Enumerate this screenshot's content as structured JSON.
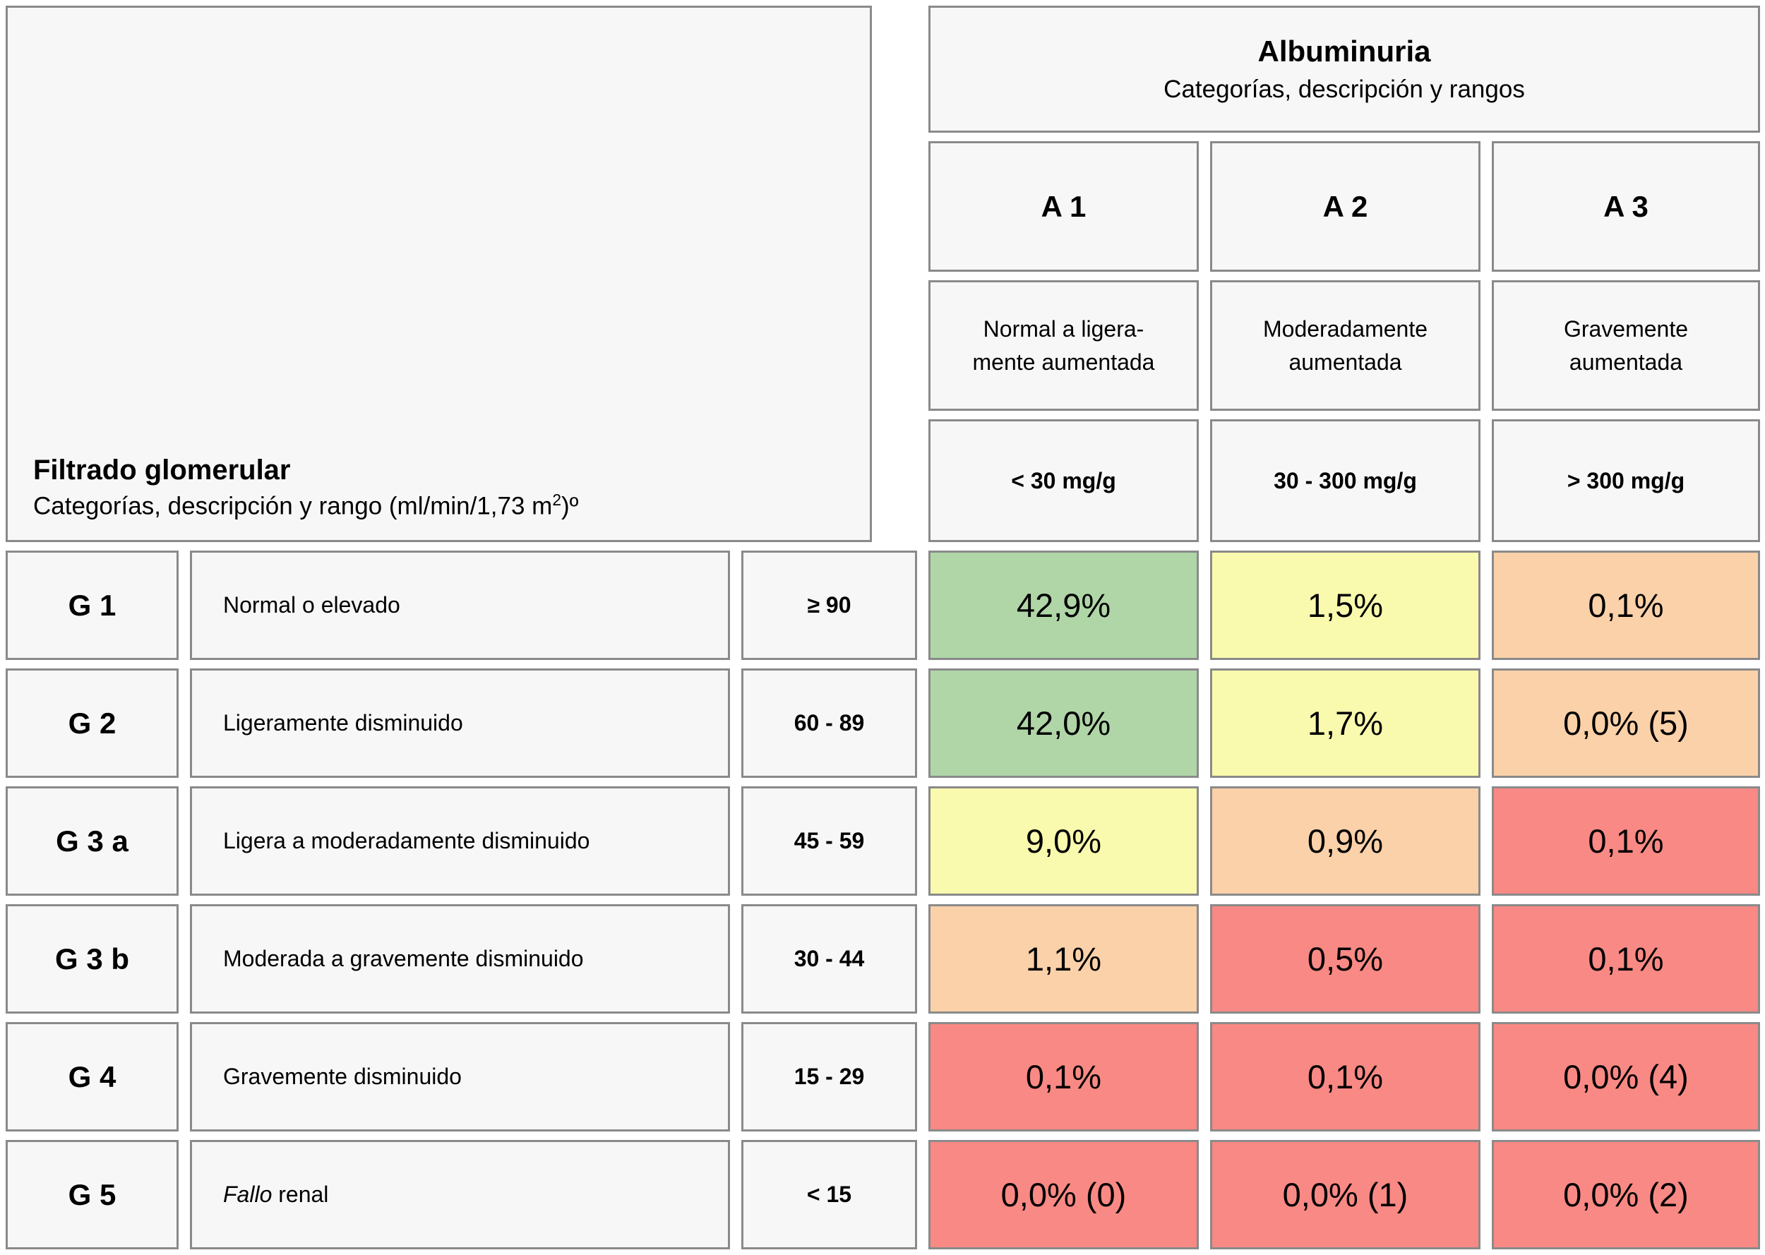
{
  "gfr_header": {
    "title": "Filtrado glomerular",
    "subtitle_prefix": "Categorías, descripción y rango (ml/min/1,73 m",
    "subtitle_sup": "2",
    "subtitle_suffix": ")º"
  },
  "albuminuria_header": {
    "title": "Albuminuria",
    "subtitle": "Categorías, descripción y rangos"
  },
  "albuminuria_categories": [
    {
      "code": "A 1",
      "desc_line1": "Normal a ligera-",
      "desc_line2": "mente aumentada",
      "range": "< 30 mg/g"
    },
    {
      "code": "A 2",
      "desc_line1": "Moderadamente",
      "desc_line2": "aumentada",
      "range": "30 - 300 mg/g"
    },
    {
      "code": "A 3",
      "desc_line1": "Gravemente",
      "desc_line2": "aumentada",
      "range": "> 300 mg/g"
    }
  ],
  "rows": [
    {
      "code": "G 1",
      "desc_italic": "",
      "desc": "Normal o elevado",
      "range": "≥ 90",
      "values": [
        "42,9%",
        "1,5%",
        "0,1%"
      ],
      "colors": [
        "green",
        "yellow",
        "orange"
      ]
    },
    {
      "code": "G 2",
      "desc_italic": "",
      "desc": "Ligeramente disminuido",
      "range": "60 - 89",
      "values": [
        "42,0%",
        "1,7%",
        "0,0% (5)"
      ],
      "colors": [
        "green",
        "yellow",
        "orange"
      ]
    },
    {
      "code": "G 3 a",
      "desc_italic": "",
      "desc": "Ligera a moderadamente disminuido",
      "range": "45 - 59",
      "values": [
        "9,0%",
        "0,9%",
        "0,1%"
      ],
      "colors": [
        "yellow",
        "orange",
        "red"
      ]
    },
    {
      "code": "G 3 b",
      "desc_italic": "",
      "desc": "Moderada a gravemente disminuido",
      "range": "30 - 44",
      "values": [
        "1,1%",
        "0,5%",
        "0,1%"
      ],
      "colors": [
        "orange",
        "red",
        "red"
      ]
    },
    {
      "code": "G 4",
      "desc_italic": "",
      "desc": "Gravemente disminuido",
      "range": "15 - 29",
      "values": [
        "0,1%",
        "0,1%",
        "0,0% (4)"
      ],
      "colors": [
        "red",
        "red",
        "red"
      ]
    },
    {
      "code": "G 5",
      "desc_italic": "Fallo",
      "desc": " renal",
      "range": "< 15",
      "values": [
        "0,0% (0)",
        "0,0% (1)",
        "0,0% (2)"
      ],
      "colors": [
        "red",
        "red",
        "red"
      ]
    }
  ],
  "colors": {
    "green": "#b0d6a8",
    "yellow": "#fafaae",
    "orange": "#fbd1a9",
    "red": "#f98984",
    "cell_background": "#f7f7f7",
    "border": "#8a8a8a"
  },
  "chart_data": {
    "type": "heatmap",
    "title": "Albuminuria",
    "subtitle": "Categorías, descripción y rangos",
    "row_axis_title": "Filtrado glomerular",
    "row_axis_subtitle": "Categorías, descripción y rango (ml/min/1,73 m2)º",
    "columns": [
      {
        "code": "A 1",
        "description": "Normal a ligeramente aumentada",
        "range": "< 30 mg/g"
      },
      {
        "code": "A 2",
        "description": "Moderadamente aumentada",
        "range": "30 - 300 mg/g"
      },
      {
        "code": "A 3",
        "description": "Gravemente aumentada",
        "range": "> 300 mg/g"
      }
    ],
    "rows": [
      {
        "code": "G 1",
        "description": "Normal o elevado",
        "range": "≥ 90"
      },
      {
        "code": "G 2",
        "description": "Ligeramente disminuido",
        "range": "60 - 89"
      },
      {
        "code": "G 3 a",
        "description": "Ligera a moderadamente disminuido",
        "range": "45 - 59"
      },
      {
        "code": "G 3 b",
        "description": "Moderada a gravemente disminuido",
        "range": "30 - 44"
      },
      {
        "code": "G 4",
        "description": "Gravemente disminuido",
        "range": "15 - 29"
      },
      {
        "code": "G 5",
        "description": "Fallo renal",
        "range": "< 15"
      }
    ],
    "values_display": [
      [
        "42,9%",
        "1,5%",
        "0,1%"
      ],
      [
        "42,0%",
        "1,7%",
        "0,0% (5)"
      ],
      [
        "9,0%",
        "0,9%",
        "0,1%"
      ],
      [
        "1,1%",
        "0,5%",
        "0,1%"
      ],
      [
        "0,1%",
        "0,1%",
        "0,0% (4)"
      ],
      [
        "0,0% (0)",
        "0,0% (1)",
        "0,0% (2)"
      ]
    ],
    "values_percent": [
      [
        42.9,
        1.5,
        0.1
      ],
      [
        42.0,
        1.7,
        0.0
      ],
      [
        9.0,
        0.9,
        0.1
      ],
      [
        1.1,
        0.5,
        0.1
      ],
      [
        0.1,
        0.1,
        0.0
      ],
      [
        0.0,
        0.0,
        0.0
      ]
    ],
    "risk_colors": [
      [
        "green",
        "yellow",
        "orange"
      ],
      [
        "green",
        "yellow",
        "orange"
      ],
      [
        "yellow",
        "orange",
        "red"
      ],
      [
        "orange",
        "red",
        "red"
      ],
      [
        "red",
        "red",
        "red"
      ],
      [
        "red",
        "red",
        "red"
      ]
    ],
    "legend_position": "none",
    "grid": "off"
  }
}
